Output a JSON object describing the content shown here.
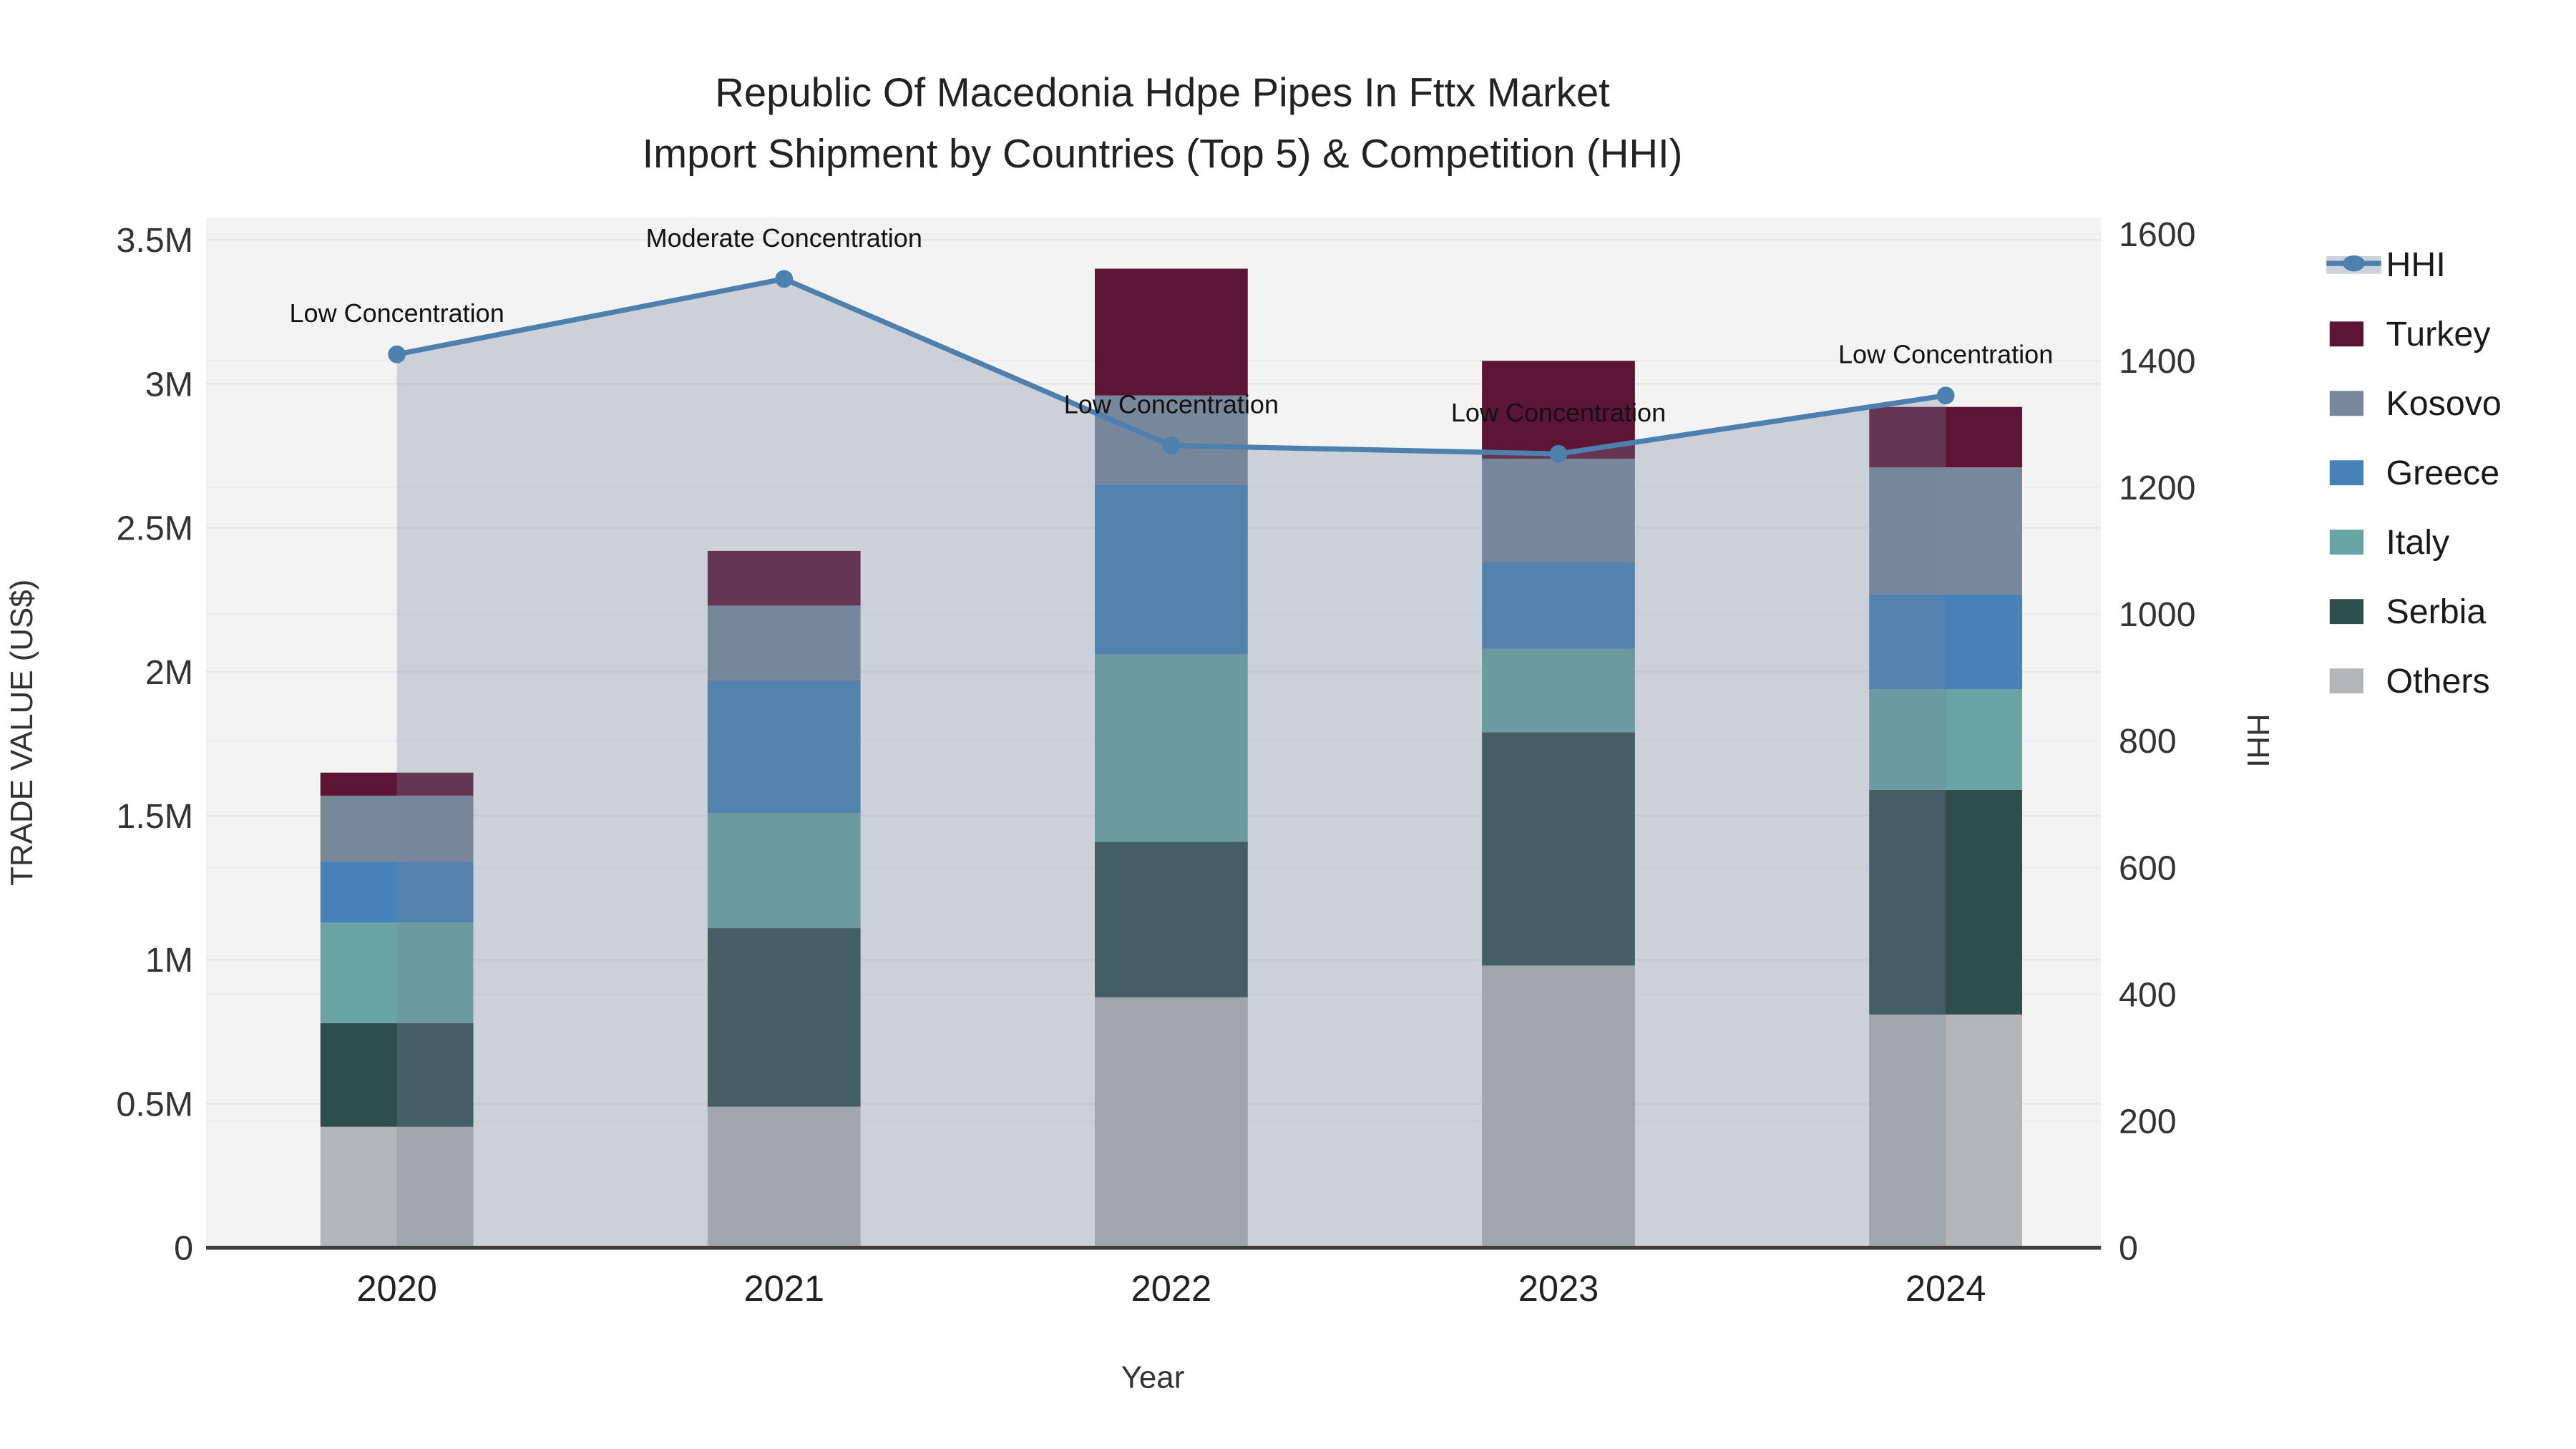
{
  "chart_data": {
    "type": "bar",
    "subtype": "stacked-bars-with-line",
    "title_line1": "Republic Of Macedonia Hdpe Pipes In Fttx Market",
    "title_line2": "Import Shipment by Countries (Top 5) & Competition (HHI)",
    "xlabel": "Year",
    "ylabel": "TRADE VALUE (US$)",
    "y2label": "HHI",
    "categories": [
      "2020",
      "2021",
      "2022",
      "2023",
      "2024"
    ],
    "value_unit": "million US$",
    "series": [
      {
        "name": "Others",
        "color": "#b4b5b7",
        "values": [
          0.42,
          0.49,
          0.87,
          0.98,
          0.81
        ]
      },
      {
        "name": "Serbia",
        "color": "#2e4e4d",
        "values": [
          0.36,
          0.62,
          0.54,
          0.81,
          0.78
        ]
      },
      {
        "name": "Italy",
        "color": "#68a4a4",
        "values": [
          0.35,
          0.4,
          0.65,
          0.29,
          0.35
        ]
      },
      {
        "name": "Greece",
        "color": "#4681b8",
        "values": [
          0.21,
          0.46,
          0.59,
          0.3,
          0.33
        ]
      },
      {
        "name": "Kosovo",
        "color": "#78889b",
        "values": [
          0.23,
          0.26,
          0.31,
          0.36,
          0.44
        ]
      },
      {
        "name": "Turkey",
        "color": "#5d1535",
        "values": [
          0.08,
          0.19,
          0.44,
          0.34,
          0.21
        ]
      }
    ],
    "bar_totals": [
      1.65,
      2.42,
      3.4,
      3.08,
      2.92
    ],
    "hhi": {
      "name": "HHI",
      "line_color": "#4d80ad",
      "area_fill": "rgba(116,131,156,0.30)",
      "legend_band_color": "#ccd2db",
      "values": [
        1410,
        1529,
        1266,
        1253,
        1345
      ]
    },
    "annotations": [
      "Low Concentration",
      "Moderate Concentration",
      "Low Concentration",
      "Low Concentration",
      "Low Concentration"
    ],
    "legend_order": [
      "HHI",
      "Turkey",
      "Kosovo",
      "Greece",
      "Italy",
      "Serbia",
      "Others"
    ],
    "yaxis": {
      "ticks": [
        "0",
        "0.5M",
        "1M",
        "1.5M",
        "2M",
        "2.5M",
        "3M",
        "3.5M"
      ],
      "min": 0,
      "max": 3.5,
      "grid": true
    },
    "yaxis2": {
      "ticks": [
        "0",
        "200",
        "400",
        "600",
        "800",
        "1000",
        "1200",
        "1400",
        "1600"
      ],
      "min": 0,
      "max": 1600,
      "grid": true
    },
    "colors": {
      "plot_background": "#f3f3f4",
      "grid_primary": "#e6e7e9",
      "grid_secondary": "#ebecee",
      "axis_line": "#3e3e3e"
    },
    "legend_position": "right"
  }
}
